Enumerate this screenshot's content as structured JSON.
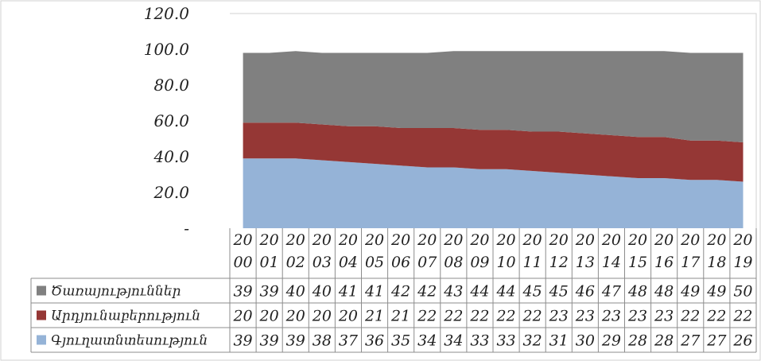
{
  "chart_data": {
    "type": "area",
    "stacked": true,
    "ylim": [
      0,
      120
    ],
    "y_ticks": [
      "-",
      "20.0",
      "40.0",
      "60.0",
      "80.0",
      "100.0",
      "120.0"
    ],
    "grid": false,
    "legend": "bottom-table",
    "categories": [
      [
        "20",
        "00"
      ],
      [
        "20",
        "01"
      ],
      [
        "20",
        "02"
      ],
      [
        "20",
        "03"
      ],
      [
        "20",
        "04"
      ],
      [
        "20",
        "05"
      ],
      [
        "20",
        "06"
      ],
      [
        "20",
        "07"
      ],
      [
        "20",
        "08"
      ],
      [
        "20",
        "09"
      ],
      [
        "20",
        "10"
      ],
      [
        "20",
        "11"
      ],
      [
        "20",
        "12"
      ],
      [
        "20",
        "13"
      ],
      [
        "20",
        "14"
      ],
      [
        "20",
        "15"
      ],
      [
        "20",
        "16"
      ],
      [
        "20",
        "17"
      ],
      [
        "20",
        "18"
      ],
      [
        "20",
        "19"
      ]
    ],
    "series": [
      {
        "name": "Գյուղատնտեսություն",
        "color": "#95B3D7",
        "values": [
          39,
          39,
          39,
          38,
          37,
          36,
          35,
          34,
          34,
          33,
          33,
          32,
          31,
          30,
          29,
          28,
          28,
          27,
          27,
          26
        ]
      },
      {
        "name": "Արդյունաբերություն",
        "color": "#953735",
        "values": [
          20,
          20,
          20,
          20,
          20,
          21,
          21,
          22,
          22,
          22,
          22,
          22,
          23,
          23,
          23,
          23,
          23,
          22,
          22,
          22
        ]
      },
      {
        "name": "Ծառայություններ",
        "color": "#808080",
        "values": [
          39,
          39,
          40,
          40,
          41,
          41,
          42,
          42,
          43,
          44,
          44,
          45,
          45,
          46,
          47,
          48,
          48,
          49,
          49,
          50
        ]
      }
    ],
    "table_row_order": [
      2,
      1,
      0
    ]
  }
}
